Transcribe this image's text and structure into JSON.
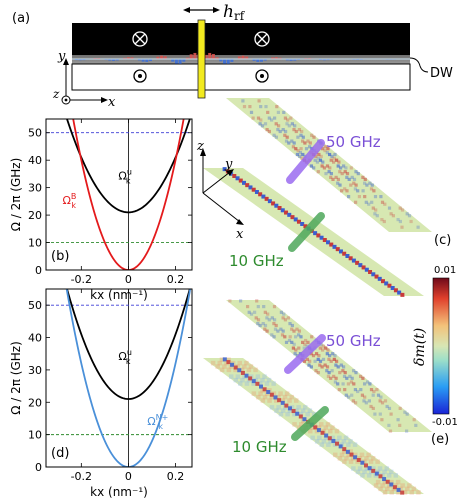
{
  "panel_a": {
    "label": "(a)",
    "field_label": "h",
    "field_sub": "rf",
    "dw_label": "DW",
    "axis_y": "y",
    "axis_x": "x",
    "axis_z": "z",
    "colors": {
      "top_domain": "#000000",
      "wall": "#808080",
      "bottom_domain": "#ffffff",
      "antenna": "#f2ea1f"
    }
  },
  "panel_b": {
    "label": "(b)",
    "ylabel": "Ω / 2π (GHz)",
    "xlabel": "kx (nm⁻¹)",
    "curve_labels": {
      "black": "Ω",
      "black_sup": "u",
      "black_sub": "k",
      "colored": "Ω",
      "colored_sup": "B",
      "colored_sub": "k"
    }
  },
  "panel_d": {
    "label": "(d)",
    "ylabel": "Ω / 2π (GHz)",
    "xlabel": "kx (nm⁻¹)",
    "curve_labels": {
      "black": "Ω",
      "black_sup": "u",
      "black_sub": "k",
      "colored": "Ω",
      "colored_sup": "N+",
      "colored_sub": "k"
    }
  },
  "panel_c": {
    "label": "(c)",
    "upper_freq": "50 GHz",
    "lower_freq": "10 GHz",
    "axis_z": "z",
    "axis_y": "y",
    "axis_x": "x"
  },
  "panel_e": {
    "label": "(e)",
    "upper_freq": "50 GHz",
    "lower_freq": "10 GHz"
  },
  "colorbar": {
    "label": "δm(t)",
    "max_label": "0.01",
    "min_label": "-0.01",
    "max": 0.01,
    "min": -0.01
  },
  "chart_data": [
    {
      "type": "line",
      "panel": "(b)",
      "xlabel": "kx (nm⁻¹)",
      "ylabel": "Ω / 2π (GHz)",
      "xlim": [
        -0.35,
        0.27
      ],
      "ylim": [
        0,
        55
      ],
      "xticks": [
        -0.2,
        0,
        0.2
      ],
      "xtick_labels": [
        "-0.2",
        "0",
        "0.2"
      ],
      "yticks": [
        0,
        10,
        20,
        30,
        40,
        50
      ],
      "series": [
        {
          "name": "Ω^u_k",
          "color": "#000000",
          "x": [
            -0.27,
            -0.2,
            -0.1,
            0,
            0.1,
            0.2,
            0.27
          ],
          "y": [
            55,
            43.5,
            26,
            21,
            26,
            43.5,
            55
          ]
        },
        {
          "name": "Ω^B_k",
          "color": "#e41a1c",
          "x": [
            -0.24,
            -0.2,
            -0.1,
            0,
            0.1,
            0.2,
            0.24
          ],
          "y": [
            55,
            40,
            10,
            0,
            10,
            40,
            55
          ]
        }
      ],
      "hlines": [
        {
          "y": 50,
          "color": "#3b3bd6",
          "style": "dashed"
        },
        {
          "y": 10,
          "color": "#2e8b2e",
          "style": "dashed"
        }
      ]
    },
    {
      "type": "line",
      "panel": "(d)",
      "xlabel": "kx (nm⁻¹)",
      "ylabel": "Ω / 2π (GHz)",
      "xlim": [
        -0.35,
        0.27
      ],
      "ylim": [
        0,
        55
      ],
      "xticks": [
        -0.2,
        0,
        0.2
      ],
      "xtick_labels": [
        "-0.2",
        "0",
        "0.2"
      ],
      "yticks": [
        0,
        10,
        20,
        30,
        40,
        50
      ],
      "series": [
        {
          "name": "Ω^u_k",
          "color": "#000000",
          "x": [
            -0.27,
            -0.2,
            -0.1,
            0,
            0.1,
            0.2,
            0.27
          ],
          "y": [
            55,
            43.5,
            26,
            21,
            26,
            43.5,
            55
          ]
        },
        {
          "name": "Ω^N+_k",
          "color": "#4a90d9",
          "x": [
            -0.3,
            -0.2,
            -0.1,
            0,
            0.1,
            0.2,
            0.3
          ],
          "y": [
            55,
            25,
            8,
            0,
            8,
            25,
            55
          ]
        }
      ],
      "hlines": [
        {
          "y": 50,
          "color": "#3b3bd6",
          "style": "dashed"
        },
        {
          "y": 10,
          "color": "#2e8b2e",
          "style": "dashed"
        }
      ]
    }
  ]
}
